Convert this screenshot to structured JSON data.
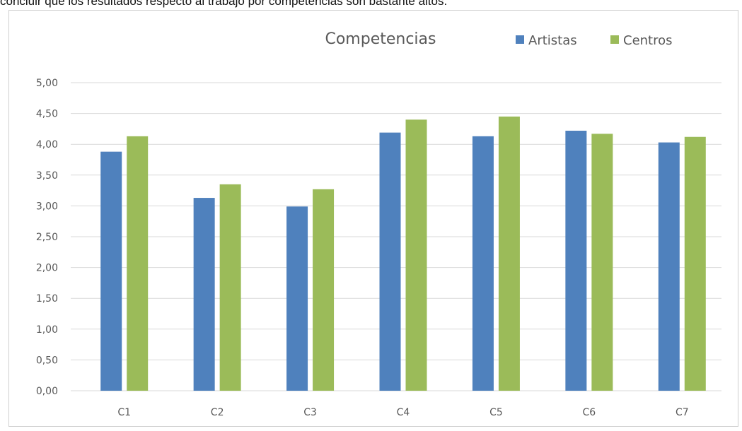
{
  "caption": "concluir que los resultados respecto al trabajo por competencias son bastante altos.",
  "chart_data": {
    "type": "bar",
    "title": "Competencias",
    "categories": [
      "C1",
      "C2",
      "C3",
      "C4",
      "C5",
      "C6",
      "C7"
    ],
    "series": [
      {
        "name": "Artistas",
        "color": "#4f81bd",
        "values": [
          3.88,
          3.13,
          2.99,
          4.19,
          4.13,
          4.22,
          4.03
        ]
      },
      {
        "name": "Centros",
        "color": "#9bbb59",
        "values": [
          4.13,
          3.35,
          3.27,
          4.4,
          4.45,
          4.17,
          4.12
        ]
      }
    ],
    "ylim": [
      0,
      5
    ],
    "ytick_labels": [
      "0,00",
      "0,50",
      "1,00",
      "1,50",
      "2,00",
      "2,50",
      "3,00",
      "3,50",
      "4,00",
      "4,50",
      "5,00"
    ],
    "grid": true,
    "legend_position": "top-right",
    "gridline_color": "#d9d9d9"
  }
}
